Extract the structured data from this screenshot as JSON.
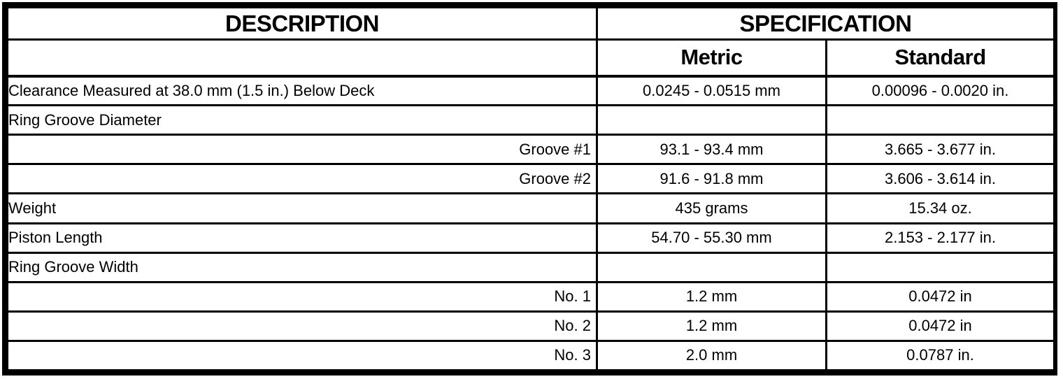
{
  "table": {
    "header": {
      "description": "DESCRIPTION",
      "specification": "SPECIFICATION",
      "metric": "Metric",
      "standard": "Standard"
    },
    "rows": [
      {
        "description": "Clearance Measured at 38.0 mm (1.5 in.) Below Deck",
        "metric": "0.0245 - 0.0515 mm",
        "standard": "0.00096 - 0.0020 in."
      },
      {
        "description": "Ring Groove Diameter",
        "metric": "",
        "standard": ""
      },
      {
        "description": "Groove #1",
        "metric": "93.1 - 93.4 mm",
        "standard": "3.665 - 3.677 in."
      },
      {
        "description": "Groove #2",
        "metric": "91.6 - 91.8 mm",
        "standard": "3.606 - 3.614 in."
      },
      {
        "description": "Weight",
        "metric": "435 grams",
        "standard": "15.34 oz."
      },
      {
        "description": "Piston Length",
        "metric": "54.70 - 55.30 mm",
        "standard": "2.153 - 2.177 in."
      },
      {
        "description": "Ring Groove Width",
        "metric": "",
        "standard": ""
      },
      {
        "description": "No. 1",
        "metric": "1.2 mm",
        "standard": "0.0472 in"
      },
      {
        "description": "No. 2",
        "metric": "1.2 mm",
        "standard": "0.0472 in"
      },
      {
        "description": "No. 3",
        "metric": "2.0 mm",
        "standard": "0.0787 in."
      }
    ]
  }
}
